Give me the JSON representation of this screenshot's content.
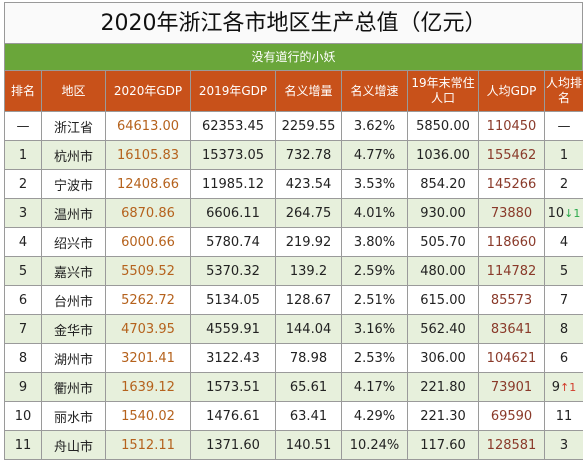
{
  "title": "2020年浙江各市地区生产总值（亿元）",
  "subtitle": "没有道行的小妖",
  "headers": [
    "排名",
    "地区",
    "2020年GDP",
    "2019年GDP",
    "名义增量",
    "名义增速",
    "19年末常住人口",
    "人均GDP",
    "人均排名"
  ],
  "rows": [
    {
      "rank": "—",
      "region": "浙江省",
      "gdp2020": "64613.00",
      "gdp2019": "62353.45",
      "increment": "2259.55",
      "growth": "3.62%",
      "population": "5850.00",
      "per_capita": "110450",
      "pc_rank": "—",
      "pc_trend": ""
    },
    {
      "rank": "1",
      "region": "杭州市",
      "gdp2020": "16105.83",
      "gdp2019": "15373.05",
      "increment": "732.78",
      "growth": "4.77%",
      "population": "1036.00",
      "per_capita": "155462",
      "pc_rank": "1",
      "pc_trend": ""
    },
    {
      "rank": "2",
      "region": "宁波市",
      "gdp2020": "12408.66",
      "gdp2019": "11985.12",
      "increment": "423.54",
      "growth": "3.53%",
      "population": "854.20",
      "per_capita": "145266",
      "pc_rank": "2",
      "pc_trend": ""
    },
    {
      "rank": "3",
      "region": "温州市",
      "gdp2020": "6870.86",
      "gdp2019": "6606.11",
      "increment": "264.75",
      "growth": "4.01%",
      "population": "930.00",
      "per_capita": "73880",
      "pc_rank": "10",
      "pc_trend": "↓1"
    },
    {
      "rank": "4",
      "region": "绍兴市",
      "gdp2020": "6000.66",
      "gdp2019": "5780.74",
      "increment": "219.92",
      "growth": "3.80%",
      "population": "505.70",
      "per_capita": "118660",
      "pc_rank": "4",
      "pc_trend": ""
    },
    {
      "rank": "5",
      "region": "嘉兴市",
      "gdp2020": "5509.52",
      "gdp2019": "5370.32",
      "increment": "139.2",
      "growth": "2.59%",
      "population": "480.00",
      "per_capita": "114782",
      "pc_rank": "5",
      "pc_trend": ""
    },
    {
      "rank": "6",
      "region": "台州市",
      "gdp2020": "5262.72",
      "gdp2019": "5134.05",
      "increment": "128.67",
      "growth": "2.51%",
      "population": "615.00",
      "per_capita": "85573",
      "pc_rank": "7",
      "pc_trend": ""
    },
    {
      "rank": "7",
      "region": "金华市",
      "gdp2020": "4703.95",
      "gdp2019": "4559.91",
      "increment": "144.04",
      "growth": "3.16%",
      "population": "562.40",
      "per_capita": "83641",
      "pc_rank": "8",
      "pc_trend": ""
    },
    {
      "rank": "8",
      "region": "湖州市",
      "gdp2020": "3201.41",
      "gdp2019": "3122.43",
      "increment": "78.98",
      "growth": "2.53%",
      "population": "306.00",
      "per_capita": "104621",
      "pc_rank": "6",
      "pc_trend": ""
    },
    {
      "rank": "9",
      "region": "衢州市",
      "gdp2020": "1639.12",
      "gdp2019": "1573.51",
      "increment": "65.61",
      "growth": "4.17%",
      "population": "221.80",
      "per_capita": "73901",
      "pc_rank": "9",
      "pc_trend": "↑1"
    },
    {
      "rank": "10",
      "region": "丽水市",
      "gdp2020": "1540.02",
      "gdp2019": "1476.61",
      "increment": "63.41",
      "growth": "4.29%",
      "population": "221.30",
      "per_capita": "69590",
      "pc_rank": "11",
      "pc_trend": ""
    },
    {
      "rank": "11",
      "region": "舟山市",
      "gdp2020": "1512.11",
      "gdp2019": "1371.60",
      "increment": "140.51",
      "growth": "10.24%",
      "population": "117.60",
      "per_capita": "128581",
      "pc_rank": "3",
      "pc_trend": ""
    }
  ],
  "colors": {
    "header_bg": "#c8511a",
    "subtitle_bg": "#6aa63a",
    "alt_row_bg": "#e7f0dc",
    "gdp_text": "#b5621d",
    "trend_down": "#2aa84a",
    "trend_up": "#d23a2a"
  }
}
